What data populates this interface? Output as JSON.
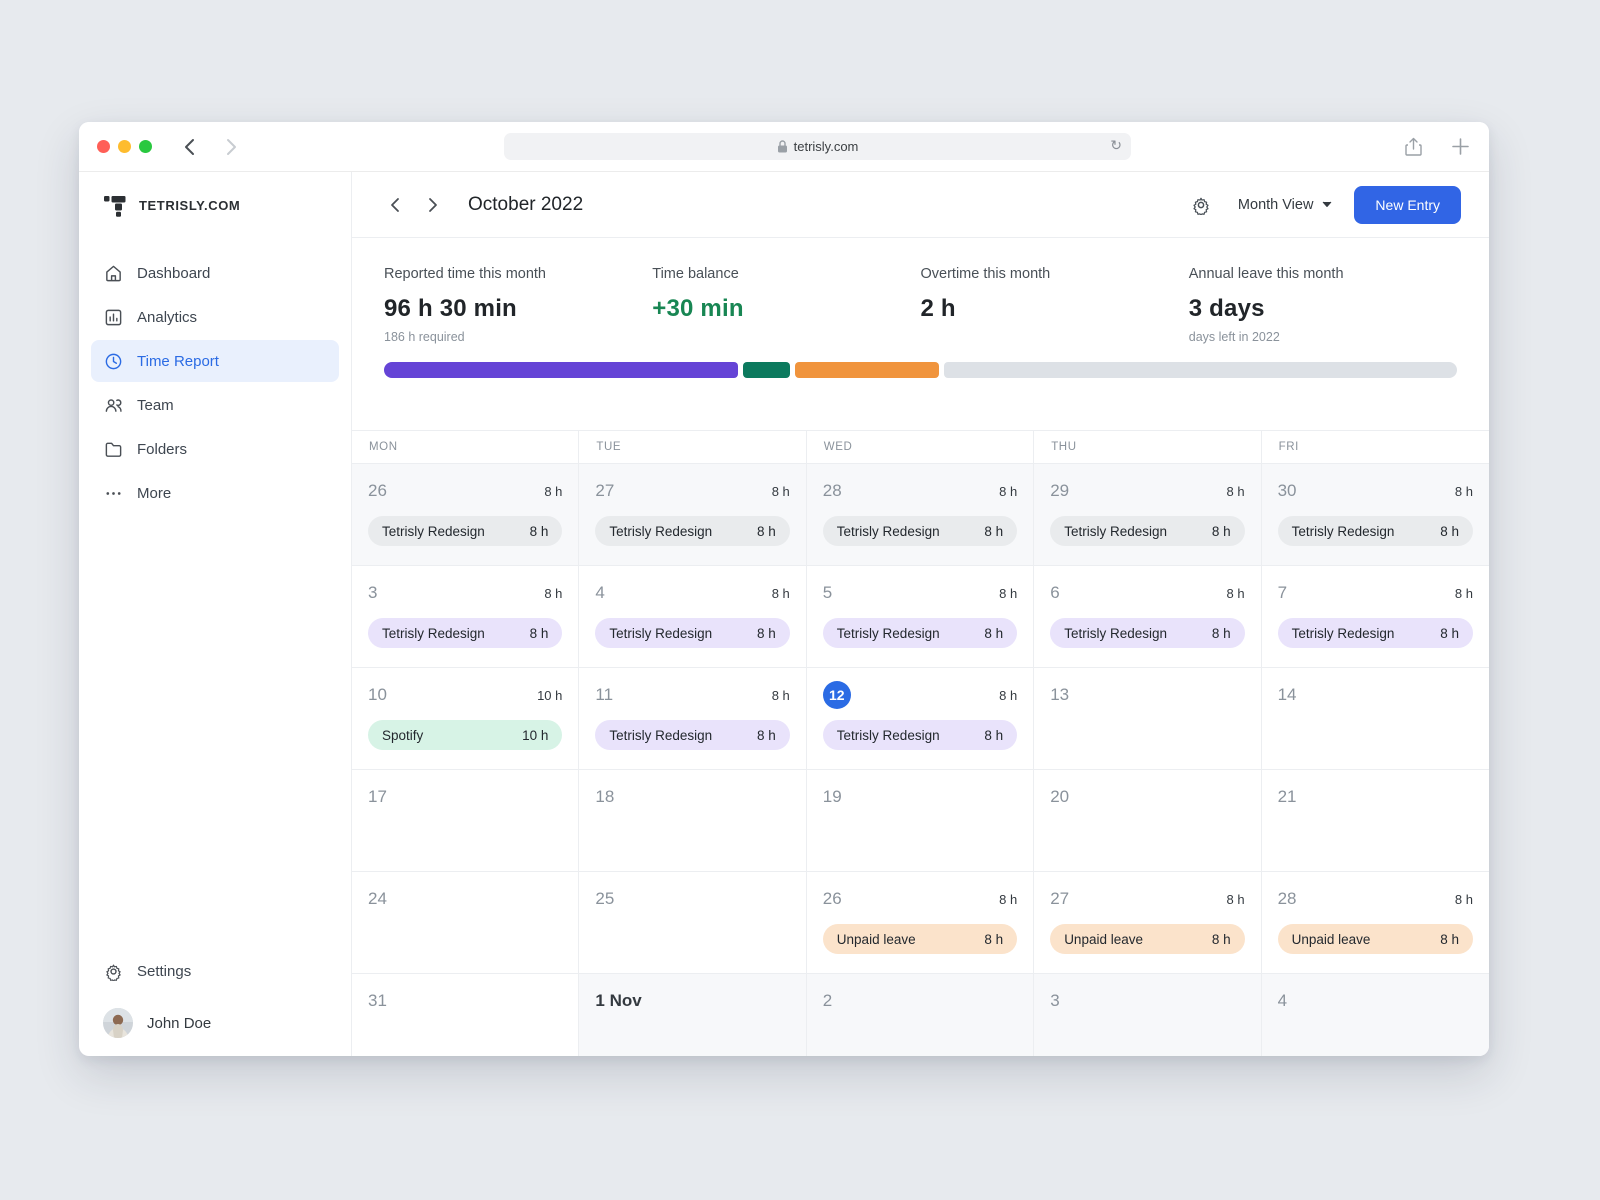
{
  "browser": {
    "url": "tetrisly.com"
  },
  "sidebar": {
    "logo_text": "TETRISLY.COM",
    "items": [
      {
        "label": "Dashboard",
        "icon": "home-icon",
        "active": false
      },
      {
        "label": "Analytics",
        "icon": "analytics-icon",
        "active": false
      },
      {
        "label": "Time Report",
        "icon": "clock-icon",
        "active": true
      },
      {
        "label": "Team",
        "icon": "team-icon",
        "active": false
      },
      {
        "label": "Folders",
        "icon": "folder-icon",
        "active": false
      },
      {
        "label": "More",
        "icon": "dots-icon",
        "active": false
      }
    ],
    "settings_label": "Settings",
    "user_name": "John Doe"
  },
  "header": {
    "title": "October 2022",
    "view_selector": "Month View",
    "new_entry_label": "New Entry"
  },
  "stats": [
    {
      "label": "Reported time this month",
      "value": "96 h 30 min",
      "sub": "186 h required",
      "value_color": "#212529"
    },
    {
      "label": "Time balance",
      "value": "+30 min",
      "sub": "",
      "value_color": "#188653"
    },
    {
      "label": "Overtime this month",
      "value": "2 h",
      "sub": "",
      "value_color": "#212529"
    },
    {
      "label": "Annual leave this month",
      "value": "3 days",
      "sub": "days left in 2022",
      "value_color": "#212529"
    }
  ],
  "progress": {
    "segments": [
      {
        "name": "reported-time",
        "color": "#6544d6",
        "pct": 33
      },
      {
        "name": "overtime",
        "color": "#0c7a5e",
        "pct": 4.4
      },
      {
        "name": "annual-leave",
        "color": "#f0943d",
        "pct": 13.4
      }
    ],
    "track_color": "#dde1e6"
  },
  "pill_colors": {
    "gray": "#e9ebed",
    "purple": "#e9e3fb",
    "mint": "#d7f3e6",
    "orange": "#fbe3cb"
  },
  "calendar": {
    "weekdays": [
      "MON",
      "TUE",
      "WED",
      "THU",
      "FRI"
    ],
    "weeks": [
      [
        {
          "day": "26",
          "total": "8 h",
          "muted": true,
          "entry": {
            "label": "Tetrisly Redesign",
            "hours": "8 h",
            "type": "gray"
          }
        },
        {
          "day": "27",
          "total": "8 h",
          "muted": true,
          "entry": {
            "label": "Tetrisly Redesign",
            "hours": "8 h",
            "type": "gray"
          }
        },
        {
          "day": "28",
          "total": "8 h",
          "muted": true,
          "entry": {
            "label": "Tetrisly Redesign",
            "hours": "8 h",
            "type": "gray"
          }
        },
        {
          "day": "29",
          "total": "8 h",
          "muted": true,
          "entry": {
            "label": "Tetrisly Redesign",
            "hours": "8 h",
            "type": "gray"
          }
        },
        {
          "day": "30",
          "total": "8 h",
          "muted": true,
          "entry": {
            "label": "Tetrisly Redesign",
            "hours": "8 h",
            "type": "gray"
          }
        }
      ],
      [
        {
          "day": "3",
          "total": "8 h",
          "entry": {
            "label": "Tetrisly Redesign",
            "hours": "8 h",
            "type": "purple"
          }
        },
        {
          "day": "4",
          "total": "8 h",
          "entry": {
            "label": "Tetrisly Redesign",
            "hours": "8 h",
            "type": "purple"
          }
        },
        {
          "day": "5",
          "total": "8 h",
          "entry": {
            "label": "Tetrisly Redesign",
            "hours": "8 h",
            "type": "purple"
          }
        },
        {
          "day": "6",
          "total": "8 h",
          "entry": {
            "label": "Tetrisly Redesign",
            "hours": "8 h",
            "type": "purple"
          }
        },
        {
          "day": "7",
          "total": "8 h",
          "entry": {
            "label": "Tetrisly Redesign",
            "hours": "8 h",
            "type": "purple"
          }
        }
      ],
      [
        {
          "day": "10",
          "total": "10 h",
          "entry": {
            "label": "Spotify",
            "hours": "10 h",
            "type": "mint"
          }
        },
        {
          "day": "11",
          "total": "8 h",
          "entry": {
            "label": "Tetrisly Redesign",
            "hours": "8 h",
            "type": "purple"
          }
        },
        {
          "day": "12",
          "total": "8 h",
          "today": true,
          "entry": {
            "label": "Tetrisly Redesign",
            "hours": "8 h",
            "type": "purple"
          }
        },
        {
          "day": "13"
        },
        {
          "day": "14"
        }
      ],
      [
        {
          "day": "17"
        },
        {
          "day": "18"
        },
        {
          "day": "19"
        },
        {
          "day": "20"
        },
        {
          "day": "21"
        }
      ],
      [
        {
          "day": "24"
        },
        {
          "day": "25"
        },
        {
          "day": "26",
          "total": "8 h",
          "entry": {
            "label": "Unpaid leave",
            "hours": "8 h",
            "type": "orange"
          }
        },
        {
          "day": "27",
          "total": "8 h",
          "entry": {
            "label": "Unpaid leave",
            "hours": "8 h",
            "type": "orange"
          }
        },
        {
          "day": "28",
          "total": "8 h",
          "entry": {
            "label": "Unpaid leave",
            "hours": "8 h",
            "type": "orange"
          }
        }
      ],
      [
        {
          "day": "31"
        },
        {
          "day": "1 Nov",
          "muted": true,
          "emphasis": true
        },
        {
          "day": "2",
          "muted": true
        },
        {
          "day": "3",
          "muted": true
        },
        {
          "day": "4",
          "muted": true
        }
      ]
    ]
  }
}
